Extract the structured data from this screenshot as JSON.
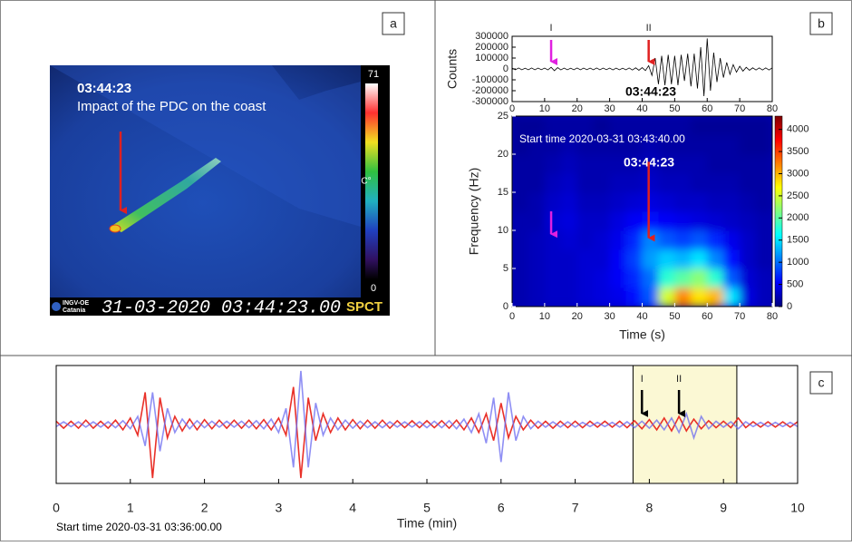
{
  "thermal_image": {
    "label": "a",
    "time": "03:44:23",
    "caption": "Impact of the PDC on the coast",
    "scale_max": "71",
    "scale_min": "0",
    "unit": "C°",
    "org": "INGV-OE",
    "org_city": "Catania",
    "timestamp": "31-03-2020 03:44:23.00",
    "camera": "SPCT"
  },
  "chart_data": [
    {
      "type": "line",
      "label": "b",
      "ylabel": "Counts",
      "annotation": "03:44:23",
      "color": "#000000",
      "x": [
        0,
        1,
        2,
        3,
        4,
        5,
        6,
        7,
        8,
        9,
        10,
        11,
        12,
        13,
        14,
        15,
        16,
        17,
        18,
        19,
        20,
        21,
        22,
        23,
        24,
        25,
        26,
        27,
        28,
        29,
        30,
        31,
        32,
        33,
        34,
        35,
        36,
        37,
        38,
        39,
        40,
        41,
        42,
        43,
        44,
        45,
        46,
        47,
        48,
        49,
        50,
        51,
        52,
        53,
        54,
        55,
        56,
        57,
        58,
        59,
        60,
        61,
        62,
        63,
        64,
        65,
        66,
        67,
        68,
        69,
        70,
        71,
        72,
        73,
        74,
        75,
        76,
        77,
        78,
        79,
        80
      ],
      "values": [
        8000,
        -8000,
        9000,
        -8000,
        7000,
        -8000,
        9000,
        -8000,
        8000,
        -7000,
        8000,
        -9000,
        15000,
        -16000,
        12000,
        -9000,
        8000,
        -8000,
        7000,
        -8000,
        9000,
        -8000,
        8000,
        -7000,
        8000,
        -8000,
        9000,
        -8000,
        8000,
        -7000,
        8000,
        -9000,
        8000,
        -8000,
        7000,
        -8000,
        9000,
        -10000,
        10000,
        -12000,
        12000,
        -15000,
        30000,
        -60000,
        100000,
        -140000,
        120000,
        -150000,
        130000,
        -140000,
        120000,
        -150000,
        130000,
        -110000,
        140000,
        -160000,
        140000,
        -180000,
        200000,
        -250000,
        280000,
        -200000,
        150000,
        -120000,
        100000,
        -80000,
        60000,
        -50000,
        40000,
        -30000,
        25000,
        -20000,
        15000,
        -12000,
        10000,
        -10000,
        10000,
        -10000,
        10000,
        -10000,
        10000
      ],
      "xlim": [
        0,
        80
      ],
      "xticks": [
        0,
        10,
        20,
        30,
        40,
        50,
        60,
        70,
        80
      ],
      "ylim": [
        -300000,
        300000
      ],
      "yticks": [
        -300000,
        -200000,
        -100000,
        0,
        100000,
        200000,
        300000
      ],
      "arrows": [
        {
          "label": "I",
          "x": 12,
          "color": "#e020e0"
        },
        {
          "label": "II",
          "x": 42,
          "color": "#e02020"
        }
      ]
    },
    {
      "type": "heatmap",
      "xlabel": "Time (s)",
      "ylabel": "Frequency (Hz)",
      "subtitle": "Start time 2020-03-31 03:43:40.00",
      "annotation": "03:44:23",
      "xbins": [
        0,
        5,
        10,
        15,
        20,
        25,
        30,
        35,
        40,
        45,
        50,
        55,
        60,
        65,
        70,
        75,
        80
      ],
      "ybins": [
        0,
        2.5,
        5,
        7.5,
        10,
        12.5,
        15,
        17.5,
        20,
        22.5,
        25
      ],
      "z": [
        [
          200,
          250,
          300,
          300,
          350,
          400,
          450,
          600,
          900,
          2500,
          3200,
          2800,
          3000,
          1500,
          400,
          250
        ],
        [
          200,
          250,
          300,
          300,
          350,
          400,
          500,
          700,
          1000,
          1800,
          2000,
          2200,
          1800,
          900,
          350,
          250
        ],
        [
          200,
          250,
          300,
          300,
          350,
          350,
          500,
          800,
          1200,
          1400,
          1300,
          1500,
          1100,
          600,
          300,
          200
        ],
        [
          200,
          250,
          300,
          350,
          300,
          350,
          450,
          700,
          1100,
          900,
          800,
          900,
          700,
          450,
          300,
          200
        ],
        [
          200,
          200,
          350,
          400,
          300,
          300,
          400,
          500,
          600,
          500,
          450,
          400,
          350,
          300,
          250,
          200
        ],
        [
          150,
          200,
          300,
          350,
          250,
          250,
          300,
          350,
          400,
          350,
          300,
          300,
          250,
          250,
          200,
          150
        ],
        [
          150,
          150,
          250,
          300,
          200,
          200,
          250,
          250,
          300,
          250,
          250,
          200,
          200,
          200,
          150,
          150
        ],
        [
          150,
          150,
          200,
          250,
          200,
          200,
          200,
          200,
          250,
          200,
          200,
          200,
          150,
          150,
          150,
          150
        ],
        [
          100,
          150,
          150,
          200,
          150,
          150,
          150,
          150,
          200,
          150,
          150,
          150,
          150,
          150,
          100,
          100
        ],
        [
          100,
          100,
          150,
          150,
          150,
          100,
          150,
          150,
          150,
          150,
          150,
          100,
          100,
          100,
          100,
          100
        ]
      ],
      "xlim": [
        0,
        80
      ],
      "xticks": [
        0,
        10,
        20,
        30,
        40,
        50,
        60,
        70,
        80
      ],
      "ylim": [
        0,
        25
      ],
      "yticks": [
        0,
        5,
        10,
        15,
        20,
        25
      ],
      "zlim": [
        0,
        4300
      ],
      "zticks": [
        0,
        500,
        1000,
        1500,
        2000,
        2500,
        3000,
        3500,
        4000
      ],
      "arrows": [
        {
          "x": 12,
          "y0": 12.5,
          "y": 9.5,
          "color": "#e020e0"
        },
        {
          "x": 42,
          "y0": 19,
          "y": 9,
          "color": "#e02020"
        }
      ]
    },
    {
      "type": "line",
      "label": "c",
      "xlabel": "Time (min)",
      "subtitle": "Start time 2020-03-31 03:36:00.00",
      "x": [
        0,
        0.1,
        0.2,
        0.3,
        0.4,
        0.5,
        0.6,
        0.7,
        0.8,
        0.9,
        1,
        1.1,
        1.2,
        1.3,
        1.4,
        1.5,
        1.6,
        1.7,
        1.8,
        1.9,
        2,
        2.1,
        2.2,
        2.3,
        2.4,
        2.5,
        2.6,
        2.7,
        2.8,
        2.9,
        3,
        3.1,
        3.2,
        3.3,
        3.4,
        3.5,
        3.6,
        3.7,
        3.8,
        3.9,
        4,
        4.1,
        4.2,
        4.3,
        4.4,
        4.5,
        4.6,
        4.7,
        4.8,
        4.9,
        5,
        5.1,
        5.2,
        5.3,
        5.4,
        5.5,
        5.6,
        5.7,
        5.8,
        5.9,
        6,
        6.1,
        6.2,
        6.3,
        6.4,
        6.5,
        6.6,
        6.7,
        6.8,
        6.9,
        7,
        7.1,
        7.2,
        7.3,
        7.4,
        7.5,
        7.6,
        7.7,
        7.8,
        7.9,
        8,
        8.1,
        8.2,
        8.3,
        8.4,
        8.5,
        8.6,
        8.7,
        8.8,
        8.9,
        9,
        9.1,
        9.2,
        9.3,
        9.4,
        9.5,
        9.6,
        9.7,
        9.8,
        9.9,
        10
      ],
      "series": [
        {
          "color": "#e8261e",
          "values": [
            0.06,
            -0.07,
            0.06,
            -0.07,
            0.08,
            -0.07,
            0.06,
            -0.07,
            0.08,
            -0.1,
            0.12,
            -0.2,
            0.6,
            -1.0,
            0.5,
            -0.25,
            0.15,
            -0.12,
            0.1,
            -0.1,
            0.09,
            -0.08,
            0.08,
            -0.07,
            0.08,
            -0.07,
            0.08,
            -0.08,
            0.09,
            -0.1,
            0.12,
            -0.2,
            0.7,
            -1.0,
            0.5,
            -0.3,
            0.2,
            -0.15,
            0.12,
            -0.1,
            0.09,
            -0.08,
            0.08,
            -0.07,
            0.08,
            -0.07,
            0.07,
            -0.06,
            0.07,
            -0.06,
            0.07,
            -0.06,
            0.07,
            -0.07,
            0.08,
            -0.1,
            0.12,
            -0.15,
            0.2,
            -0.3,
            0.4,
            -0.25,
            0.15,
            -0.1,
            0.08,
            -0.07,
            0.06,
            -0.07,
            0.06,
            -0.06,
            0.06,
            -0.06,
            0.06,
            -0.05,
            0.06,
            -0.05,
            0.06,
            -0.06,
            0.07,
            -0.08,
            0.09,
            -0.1,
            0.12,
            -0.12,
            0.15,
            -0.12,
            0.1,
            -0.08,
            0.07,
            -0.06,
            0.06,
            -0.06,
            0.12,
            -0.06,
            0.05,
            -0.05,
            0.05,
            -0.05,
            0.05,
            -0.05,
            0.05
          ]
        },
        {
          "color": "#6a6af0",
          "values": [
            -0.04,
            0.05,
            -0.04,
            0.05,
            -0.05,
            0.05,
            -0.05,
            0.05,
            -0.06,
            0.07,
            -0.08,
            0.15,
            -0.4,
            0.6,
            -0.5,
            0.3,
            -0.15,
            0.1,
            -0.08,
            0.07,
            -0.06,
            0.06,
            -0.05,
            0.06,
            -0.05,
            0.06,
            -0.06,
            0.07,
            -0.08,
            0.1,
            -0.15,
            0.3,
            -0.8,
            1.0,
            -0.8,
            0.4,
            -0.2,
            0.12,
            -0.1,
            0.08,
            -0.07,
            0.06,
            -0.06,
            0.05,
            -0.06,
            0.05,
            -0.05,
            0.05,
            -0.05,
            0.05,
            -0.06,
            0.06,
            -0.06,
            0.07,
            -0.08,
            0.1,
            -0.15,
            0.2,
            -0.35,
            0.5,
            -0.7,
            0.6,
            -0.3,
            0.15,
            -0.08,
            0.06,
            -0.05,
            0.05,
            -0.05,
            0.05,
            -0.05,
            0.04,
            -0.04,
            0.04,
            -0.04,
            0.04,
            -0.05,
            0.05,
            -0.06,
            0.06,
            -0.07,
            0.08,
            -0.1,
            0.12,
            -0.15,
            0.2,
            -0.25,
            0.15,
            -0.08,
            0.06,
            -0.05,
            0.05,
            -0.08,
            0.05,
            -0.04,
            0.04,
            -0.04,
            0.04,
            -0.04,
            0.04,
            -0.04
          ]
        }
      ],
      "xlim": [
        0,
        10
      ],
      "xticks": [
        0,
        1,
        2,
        3,
        4,
        5,
        6,
        7,
        8,
        9,
        10
      ],
      "ylim": [
        -1.1,
        1.1
      ],
      "highlight": [
        7.78,
        9.18
      ],
      "arrows": [
        {
          "label": "I",
          "x": 7.9,
          "color": "#000000"
        },
        {
          "label": "II",
          "x": 8.4,
          "color": "#000000"
        }
      ]
    }
  ]
}
